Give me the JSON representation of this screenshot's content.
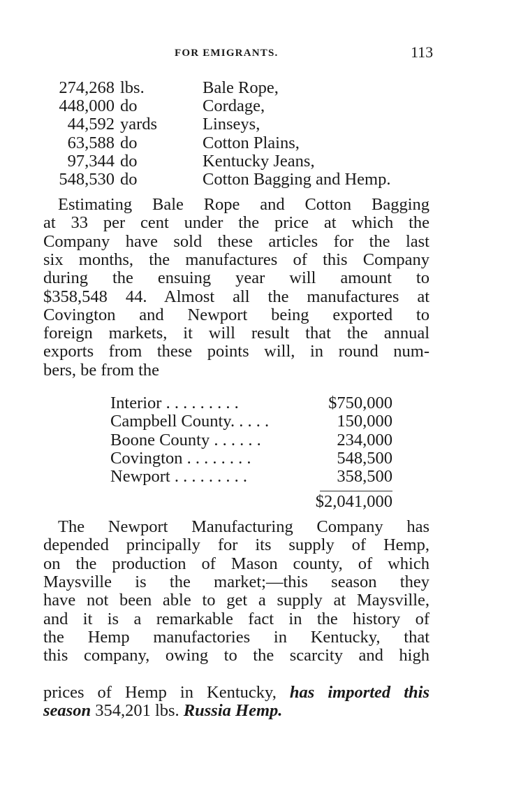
{
  "header": {
    "running_title": "FOR EMIGRANTS.",
    "page_number": "113"
  },
  "manufactures": [
    {
      "qty": "274,268",
      "unit": "lbs.",
      "item": "Bale Rope,"
    },
    {
      "qty": "448,000",
      "unit": "do",
      "item": "Cordage,"
    },
    {
      "qty": "44,592",
      "unit": "yards",
      "item": "Linseys,"
    },
    {
      "qty": "63,588",
      "unit": "do",
      "item": "Cotton Plains,"
    },
    {
      "qty": "97,344",
      "unit": "do",
      "item": "Kentucky Jeans,"
    },
    {
      "qty": "548,530",
      "unit": "do",
      "item": "Cotton Bagging and Hemp."
    }
  ],
  "paragraph1": [
    "Estimating Bale Rope and Cotton Bagging",
    "at 33 per cent under the price at which the",
    "Company have sold these articles for the last",
    "six months, the manufactures of this Company",
    "during the ensuing year will amount to",
    "$358,548 44.  Almost all the manufactures at",
    "Covington and Newport being exported to",
    "foreign markets, it will result that the annual",
    "exports from these points will, in round num-",
    "bers, be from the"
  ],
  "exports": [
    {
      "label": "Interior . . . . . . . . .",
      "amount": "$750,000"
    },
    {
      "label": "Campbell County. . . . .",
      "amount": "150,000"
    },
    {
      "label": "Boone County . . . . . .",
      "amount": "234,000"
    },
    {
      "label": "Covington . . . . . . . .",
      "amount": "548,500"
    },
    {
      "label": "Newport . . . . . . . . .",
      "amount": "358,500"
    }
  ],
  "exports_total": "$2,041,000",
  "paragraph2": [
    "The Newport Manufacturing Company has",
    "depended principally for its supply of Hemp,",
    "on the production of Mason county, of which",
    "Maysville is the market;—this season they",
    "have not been able to get a supply at Maysville,",
    "and it is a remarkable fact in the history of",
    "the Hemp manufactories in Kentucky, that",
    "this company, owing to the scarcity and high",
    "prices of Hemp in Kentucky,"
  ],
  "paragraph2_end": {
    "italic1": "has imported this",
    "italic2": "season",
    "plain": "354,201 lbs.",
    "bold_italic": "Russia Hemp."
  }
}
